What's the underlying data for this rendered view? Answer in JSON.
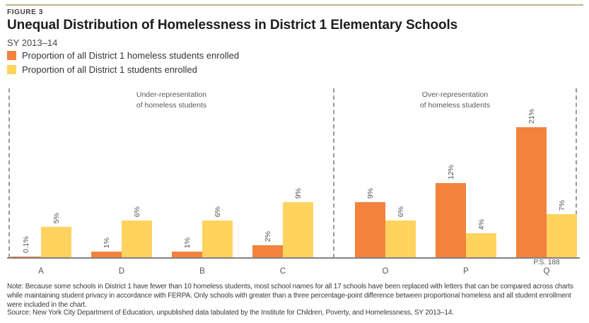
{
  "figure_label": "FIGURE 3",
  "title": "Unequal Distribution of Homelessness in District 1 Elementary Schools",
  "subtitle": "SY 2013–14",
  "legend": [
    {
      "label": "Proportion of all District 1 homeless students enrolled",
      "color": "#F2823C"
    },
    {
      "label": "Proportion of all District 1 students enrolled",
      "color": "#FFD35E"
    }
  ],
  "note": "Note: Because some schools in District 1 have fewer than 10 homeless students, most school names for all 17 schools have been replaced with letters that can be compared across charts while maintaining student privacy in accordance with FERPA. Only schools with greater than a three percentage-point difference between proportional homeless and all student enrollment were included in the chart.",
  "source": "Source: New York City Department of Education, unpublished data tabulated by the Institute for Children, Poverty, and Homelessness, SY 2013–14.",
  "colors": {
    "accent_rule": "#C1B28A",
    "axis_line": "#828282",
    "dashed_divider": "#9B9B9B",
    "orange": "#F2823C",
    "yellow": "#FFD35E"
  },
  "chart_data": {
    "type": "bar",
    "title": "Unequal Distribution of Homelessness in District 1 Elementary Schools",
    "subtitle": "SY 2013–14",
    "xlabel": "",
    "ylabel": "",
    "unit": "%",
    "ylim": [
      0,
      22
    ],
    "grid": false,
    "y_axis_shown": false,
    "legend_position": "top-left",
    "series": [
      {
        "key": "homeless",
        "name": "Proportion of all District 1 homeless students enrolled",
        "color": "#F2823C"
      },
      {
        "key": "enrolled",
        "name": "Proportion of all District 1 students enrolled",
        "color": "#FFD35E"
      }
    ],
    "sections": [
      {
        "label_line1": "Under-representation",
        "label_line2": "of homeless students",
        "schools": [
          {
            "name": "A",
            "sublabel": "",
            "values": [
              0.1,
              5
            ],
            "value_labels": [
              "0.1%",
              "5%"
            ]
          },
          {
            "name": "D",
            "sublabel": "",
            "values": [
              1,
              6
            ],
            "value_labels": [
              "1%",
              "6%"
            ]
          },
          {
            "name": "B",
            "sublabel": "",
            "values": [
              1,
              6
            ],
            "value_labels": [
              "1%",
              "6%"
            ]
          },
          {
            "name": "C",
            "sublabel": "",
            "values": [
              2,
              9
            ],
            "value_labels": [
              "2%",
              "9%"
            ]
          }
        ]
      },
      {
        "label_line1": "Over-representation",
        "label_line2": "of homeless students",
        "schools": [
          {
            "name": "O",
            "sublabel": "",
            "values": [
              9,
              6
            ],
            "value_labels": [
              "9%",
              "6%"
            ]
          },
          {
            "name": "P",
            "sublabel": "",
            "values": [
              12,
              4
            ],
            "value_labels": [
              "12%",
              "4%"
            ]
          },
          {
            "name": "Q",
            "sublabel": "P.S. 188",
            "values": [
              21,
              7
            ],
            "value_labels": [
              "21%",
              "7%"
            ]
          }
        ]
      }
    ]
  }
}
